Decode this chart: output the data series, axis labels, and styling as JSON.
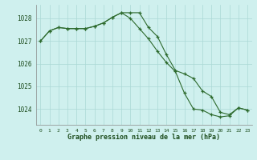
{
  "title": "Graphe pression niveau de la mer (hPa)",
  "bg_color": "#cff0ee",
  "grid_color": "#aad8d5",
  "line_color": "#2d6a2d",
  "xlim": [
    -0.5,
    23.5
  ],
  "ylim": [
    1023.3,
    1028.6
  ],
  "yticks": [
    1024,
    1025,
    1026,
    1027,
    1028
  ],
  "xticks": [
    0,
    1,
    2,
    3,
    4,
    5,
    6,
    7,
    8,
    9,
    10,
    11,
    12,
    13,
    14,
    15,
    16,
    17,
    18,
    19,
    20,
    21,
    22,
    23
  ],
  "series1_x": [
    0,
    1,
    2,
    3,
    4,
    5,
    6,
    7,
    8,
    9,
    10,
    11,
    12,
    13,
    14,
    15,
    16,
    17,
    18,
    19,
    20,
    21,
    22,
    23
  ],
  "series1_y": [
    1027.0,
    1027.45,
    1027.6,
    1027.55,
    1027.55,
    1027.55,
    1027.65,
    1027.8,
    1028.05,
    1028.25,
    1028.25,
    1028.25,
    1027.6,
    1027.2,
    1026.4,
    1025.7,
    1025.55,
    1025.35,
    1024.8,
    1024.55,
    1023.85,
    1023.75,
    1024.05,
    1023.95
  ],
  "series2_x": [
    0,
    1,
    2,
    3,
    4,
    5,
    6,
    7,
    8,
    9,
    10,
    11,
    12,
    13,
    14,
    15,
    16,
    17,
    18,
    19,
    20,
    21,
    22,
    23
  ],
  "series2_y": [
    1027.0,
    1027.45,
    1027.6,
    1027.55,
    1027.55,
    1027.55,
    1027.65,
    1027.8,
    1028.05,
    1028.25,
    1028.0,
    1027.55,
    1027.1,
    1026.55,
    1026.05,
    1025.65,
    1024.7,
    1024.0,
    1023.95,
    1023.75,
    1023.65,
    1023.7,
    1024.05,
    1023.95
  ]
}
